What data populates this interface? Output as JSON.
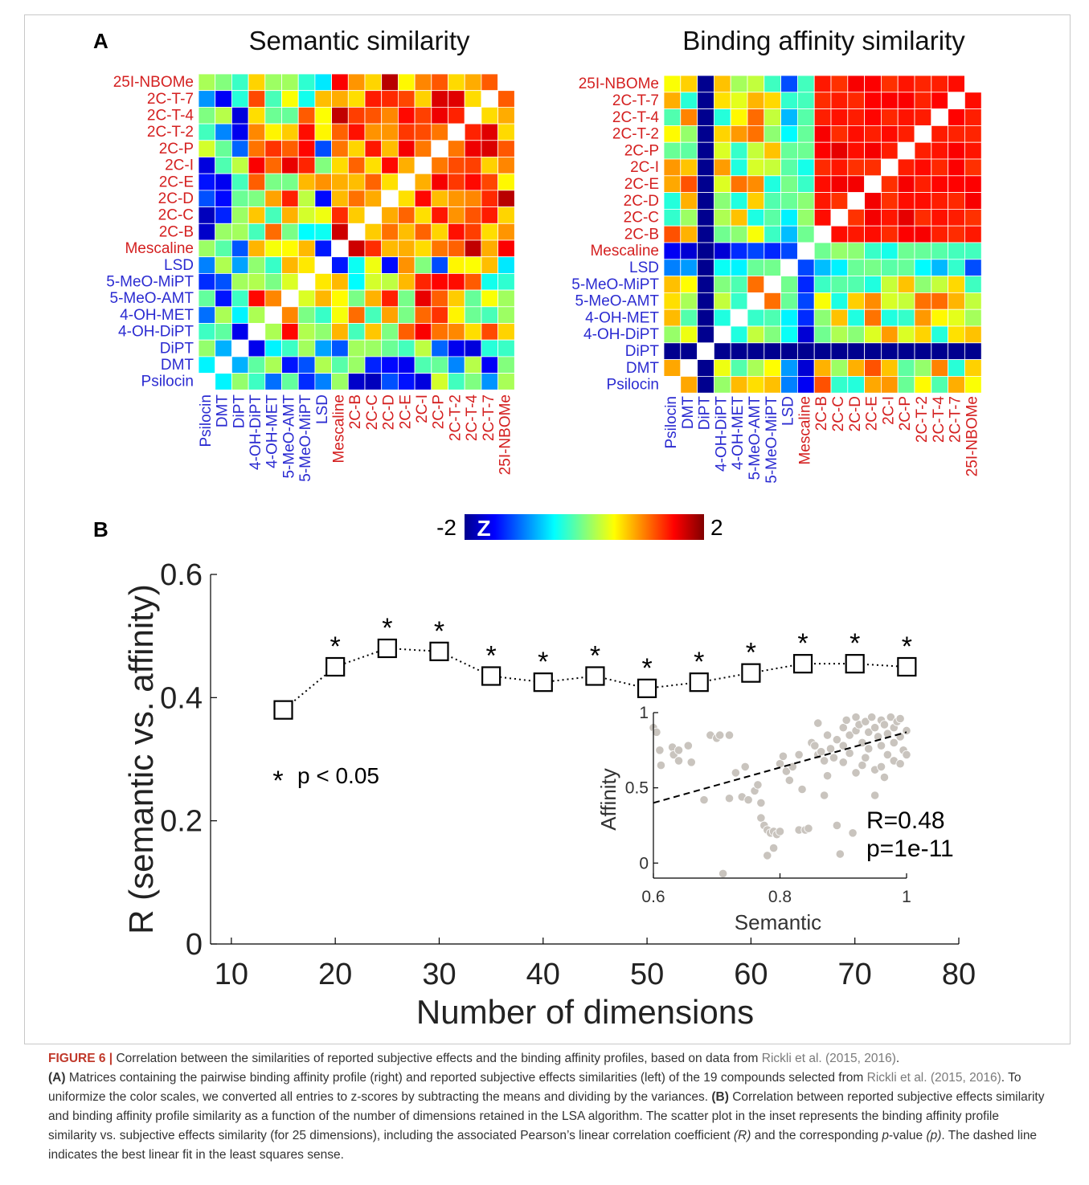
{
  "panels": {
    "a_label": "A",
    "b_label": "B"
  },
  "heatmaps": [
    {
      "title": "Semantic similarity"
    },
    {
      "title": "Binding affinity similarity"
    }
  ],
  "compounds": [
    "Psilocin",
    "DMT",
    "DiPT",
    "4-OH-DiPT",
    "4-OH-MET",
    "5-MeO-AMT",
    "5-MeO-MiPT",
    "LSD",
    "Mescaline",
    "2C-B",
    "2C-C",
    "2C-D",
    "2C-E",
    "2C-I",
    "2C-P",
    "2C-T-2",
    "2C-T-4",
    "2C-T-7",
    "25I-NBOMe"
  ],
  "compound_groups": [
    "blue",
    "blue",
    "blue",
    "blue",
    "blue",
    "blue",
    "blue",
    "blue",
    "red",
    "red",
    "red",
    "red",
    "red",
    "red",
    "red",
    "red",
    "red",
    "red",
    "red"
  ],
  "colors": {
    "blue_label": "#2b2bd1",
    "red_label": "#d42020",
    "marker": "#000000",
    "scatter_point": "#c9c4be"
  },
  "colorbar": {
    "min_label": "-2",
    "max_label": "2",
    "z_label": "Z"
  },
  "chart_data": [
    {
      "type": "line",
      "x": [
        15,
        20,
        25,
        30,
        35,
        40,
        45,
        50,
        55,
        60,
        65,
        70,
        75
      ],
      "y": [
        0.38,
        0.45,
        0.48,
        0.475,
        0.435,
        0.425,
        0.435,
        0.415,
        0.425,
        0.44,
        0.455,
        0.455,
        0.45
      ],
      "significant": [
        false,
        true,
        true,
        true,
        true,
        true,
        true,
        true,
        true,
        true,
        true,
        true,
        true
      ],
      "xlabel": "Number of dimensions",
      "ylabel": "R (semantic vs. affinity)",
      "xlim": [
        8,
        80
      ],
      "ylim": [
        0,
        0.6
      ],
      "xticks": [
        10,
        20,
        30,
        40,
        50,
        60,
        70,
        80
      ],
      "yticks": [
        "0",
        "0.2",
        "0.4",
        "0.6"
      ],
      "marker": "square",
      "line_style": "dotted",
      "annotation_star": "*",
      "annotation_text": "p < 0.05"
    },
    {
      "type": "scatter",
      "xlabel": "Semantic",
      "ylabel": "Affinity",
      "xlim": [
        0.6,
        1
      ],
      "ylim": [
        -0.1,
        1
      ],
      "xticks": [
        "0.6",
        "0.8",
        "1"
      ],
      "yticks": [
        "0",
        "0.5",
        "1"
      ],
      "fit_line": {
        "x": [
          0.6,
          1
        ],
        "y": [
          0.4,
          0.87
        ],
        "style": "dashed"
      },
      "stats": {
        "r": "R=0.48",
        "p": "p=1e-11"
      },
      "points": [
        [
          0.6,
          0.9
        ],
        [
          0.605,
          0.87
        ],
        [
          0.61,
          0.75
        ],
        [
          0.612,
          0.65
        ],
        [
          0.63,
          0.77
        ],
        [
          0.632,
          0.72
        ],
        [
          0.64,
          0.75
        ],
        [
          0.64,
          0.68
        ],
        [
          0.655,
          0.78
        ],
        [
          0.66,
          0.67
        ],
        [
          0.68,
          0.42
        ],
        [
          0.69,
          0.85
        ],
        [
          0.7,
          0.83
        ],
        [
          0.705,
          0.85
        ],
        [
          0.71,
          -0.07
        ],
        [
          0.72,
          0.85
        ],
        [
          0.73,
          0.6
        ],
        [
          0.72,
          0.43
        ],
        [
          0.74,
          0.44
        ],
        [
          0.745,
          0.64
        ],
        [
          0.75,
          0.42
        ],
        [
          0.76,
          0.48
        ],
        [
          0.765,
          0.52
        ],
        [
          0.77,
          0.4
        ],
        [
          0.77,
          0.3
        ],
        [
          0.775,
          0.25
        ],
        [
          0.78,
          0.22
        ],
        [
          0.785,
          0.2
        ],
        [
          0.79,
          0.21
        ],
        [
          0.795,
          0.19
        ],
        [
          0.78,
          0.05
        ],
        [
          0.79,
          0.1
        ],
        [
          0.8,
          0.21
        ],
        [
          0.8,
          0.66
        ],
        [
          0.805,
          0.71
        ],
        [
          0.81,
          0.61
        ],
        [
          0.815,
          0.55
        ],
        [
          0.82,
          0.64
        ],
        [
          0.83,
          0.72
        ],
        [
          0.835,
          0.49
        ],
        [
          0.83,
          0.22
        ],
        [
          0.84,
          0.22
        ],
        [
          0.845,
          0.23
        ],
        [
          0.85,
          0.8
        ],
        [
          0.855,
          0.78
        ],
        [
          0.86,
          0.72
        ],
        [
          0.865,
          0.74
        ],
        [
          0.87,
          0.45
        ],
        [
          0.875,
          0.58
        ],
        [
          0.875,
          0.85
        ],
        [
          0.88,
          0.76
        ],
        [
          0.885,
          0.7
        ],
        [
          0.89,
          0.82
        ],
        [
          0.89,
          0.25
        ],
        [
          0.895,
          0.06
        ],
        [
          0.9,
          0.78
        ],
        [
          0.9,
          0.9
        ],
        [
          0.905,
          0.95
        ],
        [
          0.91,
          0.85
        ],
        [
          0.91,
          0.73
        ],
        [
          0.915,
          0.2
        ],
        [
          0.92,
          0.88
        ],
        [
          0.92,
          0.97
        ],
        [
          0.925,
          0.92
        ],
        [
          0.93,
          0.8
        ],
        [
          0.93,
          0.65
        ],
        [
          0.935,
          0.94
        ],
        [
          0.94,
          0.87
        ],
        [
          0.94,
          0.76
        ],
        [
          0.945,
          0.97
        ],
        [
          0.95,
          0.9
        ],
        [
          0.95,
          0.62
        ],
        [
          0.955,
          0.84
        ],
        [
          0.96,
          0.95
        ],
        [
          0.96,
          0.78
        ],
        [
          0.965,
          0.92
        ],
        [
          0.97,
          0.86
        ],
        [
          0.97,
          0.72
        ],
        [
          0.975,
          0.97
        ],
        [
          0.98,
          0.9
        ],
        [
          0.98,
          0.8
        ],
        [
          0.985,
          0.94
        ],
        [
          0.99,
          0.96
        ],
        [
          0.99,
          0.84
        ],
        [
          0.995,
          0.75
        ],
        [
          1.0,
          0.72
        ],
        [
          1.0,
          0.88
        ],
        [
          0.965,
          0.57
        ],
        [
          0.95,
          0.45
        ],
        [
          0.98,
          0.68
        ],
        [
          0.86,
          0.93
        ],
        [
          0.87,
          0.68
        ],
        [
          0.9,
          0.67
        ],
        [
          0.92,
          0.6
        ],
        [
          0.935,
          0.7
        ],
        [
          0.96,
          0.64
        ],
        [
          0.99,
          0.66
        ]
      ]
    }
  ],
  "caption": {
    "head": "FIGURE 6 |",
    "l1a": "Correlation between the similarities of reported subjective effects and the binding affinity profiles, based on data from",
    "cite1": "Rickli et al. (2015, 2016)",
    "l1b": ".",
    "a_tag": "(A)",
    "l2a": "Matrices containing the pairwise binding affinity profile (right) and reported subjective effects similarities (left) of the 19 compounds selected from",
    "cite2": "Rickli et al. (2015, 2016)",
    "l2b": ". To uniformize the color scales, we converted all entries to z-scores by subtracting the means and dividing by the variances.",
    "b_tag": "(B)",
    "l3a": "Correlation between reported subjective effects similarity and binding affinity profile similarity as a function of the number of dimensions retained in the LSA algorithm. The scatter plot in the inset represents the binding affinity profile similarity vs. subjective effects similarity (for 25 dimensions), including the associated Pearson’s linear correlation coefficient",
    "r_sym": "(R)",
    "l3b": "and the corresponding",
    "p_ital": "p",
    "l3c": "-value",
    "p_sym": "(p)",
    "l3d": ". The dashed line indicates the best linear fit in the least squares sense."
  }
}
